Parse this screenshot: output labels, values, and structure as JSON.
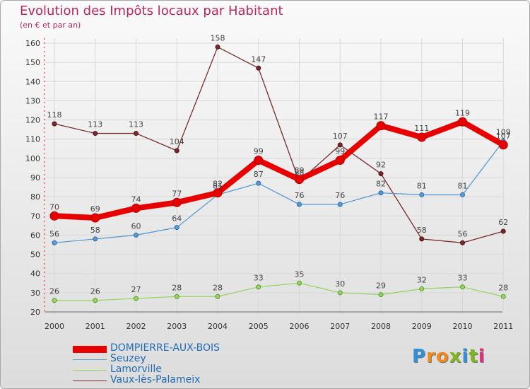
{
  "chart_data": {
    "type": "line",
    "title": "Evolution des Impôts locaux par Habitant",
    "subtitle": "(en € et par an)",
    "xlabel": "",
    "ylabel": "",
    "categories": [
      "2000",
      "2001",
      "2002",
      "2003",
      "2004",
      "2005",
      "2006",
      "2007",
      "2008",
      "2009",
      "2010",
      "2011"
    ],
    "ylim": [
      20,
      160
    ],
    "yticks": [
      20,
      30,
      40,
      50,
      60,
      70,
      80,
      90,
      100,
      110,
      120,
      130,
      140,
      150,
      160
    ],
    "grid": true,
    "legend_position": "bottom-left",
    "series": [
      {
        "name": "DOMPIERRE-AUX-BOIS",
        "color": "#e80000",
        "values": [
          70,
          69,
          74,
          77,
          82,
          99,
          89,
          99,
          117,
          111,
          119,
          107
        ]
      },
      {
        "name": "Seuzey",
        "color": "#5c9bd1",
        "values": [
          56,
          58,
          60,
          64,
          81,
          87,
          76,
          76,
          82,
          81,
          81,
          109
        ]
      },
      {
        "name": "Lamorville",
        "color": "#99d465",
        "values": [
          26,
          26,
          27,
          28,
          28,
          33,
          35,
          30,
          29,
          32,
          33,
          28
        ]
      },
      {
        "name": "Vaux-lès-Palameix",
        "color": "#7a2a2a",
        "values": [
          118,
          113,
          113,
          104,
          158,
          147,
          88,
          107,
          92,
          58,
          56,
          62
        ]
      }
    ]
  },
  "logo": {
    "letters": [
      "P",
      "r",
      "o",
      "x",
      "i",
      "t",
      "i"
    ],
    "colors": [
      "#2f8fd8",
      "#f08a1c",
      "#f08a1c",
      "#7fb81e",
      "#2f8fd8",
      "#7fb81e",
      "#e0307a"
    ]
  }
}
